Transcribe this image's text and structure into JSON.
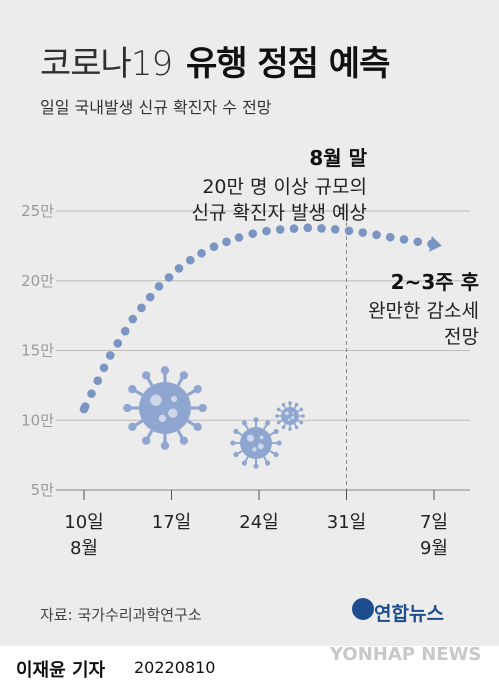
{
  "header": {
    "title_light": "코로나19",
    "title_bold": "유행 정점 예측",
    "subtitle": "일일 국내발생 신규 확진자 수 전망"
  },
  "annotations": {
    "peak_head": "8월 말",
    "peak_line1": "20만 명 이상 규모의",
    "peak_line2": "신규 확진자 발생 예상",
    "decline_head": "2~3주 후",
    "decline_line1": "완만한 감소세",
    "decline_line2": "전망"
  },
  "footer": {
    "source": "자료: 국가수리과학연구소",
    "agency": "연합뉴스",
    "reporter": "이재윤 기자",
    "date": "20220810",
    "watermark": "YONHAP NEWS"
  },
  "colors": {
    "dots": "#7b95c2",
    "virus": "#8fa6d0",
    "grid": "#bdbdbd",
    "background": "#ececec"
  },
  "chart_data": {
    "type": "line",
    "title": "코로나19 유행 정점 예측",
    "subtitle": "일일 국내발생 신규 확진자 수 전망",
    "y_unit": "만",
    "ylim": [
      5,
      25
    ],
    "yticks": [
      5,
      10,
      15,
      20,
      25
    ],
    "ytick_labels": [
      "5만",
      "10만",
      "15만",
      "20만",
      "25만"
    ],
    "xticks": [
      0,
      7,
      14,
      21,
      28
    ],
    "xtick_labels": [
      [
        "10일",
        "8월"
      ],
      [
        "17일",
        ""
      ],
      [
        "24일",
        ""
      ],
      [
        "31일",
        ""
      ],
      [
        "7일",
        "9월"
      ]
    ],
    "peak_marker_x": 21,
    "series": [
      {
        "x": [
          0,
          2,
          4,
          6,
          8,
          10,
          12,
          14,
          16,
          18,
          20,
          22,
          24,
          26,
          28
        ],
        "values": [
          10.8,
          14.5,
          17.4,
          19.6,
          21.2,
          22.3,
          23.0,
          23.5,
          23.7,
          23.8,
          23.7,
          23.5,
          23.2,
          22.9,
          22.6
        ]
      }
    ]
  }
}
